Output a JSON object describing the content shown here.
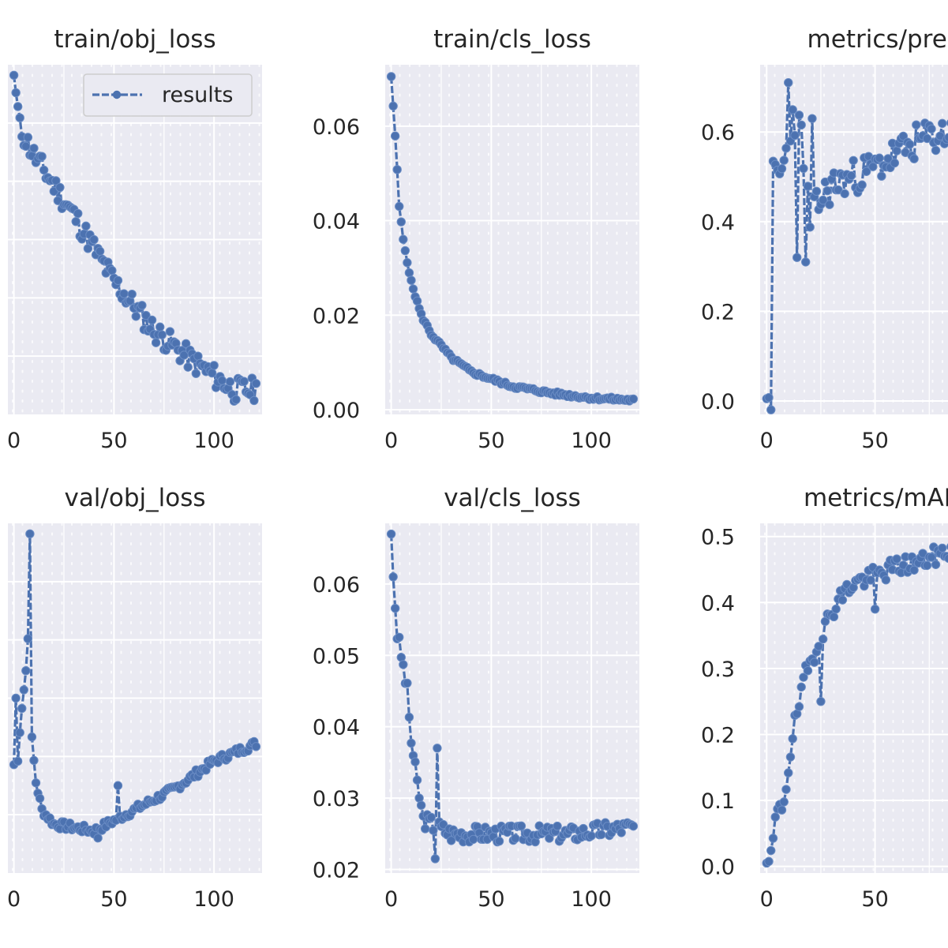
{
  "figure": {
    "background": "#ffffff",
    "plot_background": "#eaeaf2",
    "grid_color": "#ffffff",
    "line_color": "#4c72b0",
    "text_color": "#262626"
  },
  "chart_data": [
    {
      "type": "line",
      "title": "train/obj_loss",
      "legend": {
        "label": "results",
        "placement": "top-right"
      },
      "xlim": [
        -3,
        124
      ],
      "ylim": [
        0.0,
        1.0
      ],
      "xticks": [
        0,
        50,
        100
      ],
      "yticks": [],
      "noise": 0.035,
      "seed": 11,
      "anchors": [
        [
          0,
          0.97
        ],
        [
          3,
          0.82
        ],
        [
          10,
          0.74
        ],
        [
          30,
          0.57
        ],
        [
          50,
          0.38
        ],
        [
          70,
          0.24
        ],
        [
          90,
          0.15
        ],
        [
          110,
          0.07
        ],
        [
          121,
          0.07
        ]
      ]
    },
    {
      "type": "line",
      "title": "train/cls_loss",
      "xlim": [
        -3,
        124
      ],
      "ylim": [
        -0.001,
        0.073
      ],
      "xticks": [
        0,
        50,
        100
      ],
      "yticks": [
        0.0,
        0.02,
        0.04,
        0.06
      ],
      "ytick_labels": [
        "0.00",
        "0.02",
        "0.04",
        "0.06"
      ],
      "noise": 0.0004,
      "seed": 5,
      "anchors": [
        [
          0,
          0.0705
        ],
        [
          2,
          0.058
        ],
        [
          4,
          0.043
        ],
        [
          6,
          0.036
        ],
        [
          10,
          0.027
        ],
        [
          15,
          0.02
        ],
        [
          20,
          0.016
        ],
        [
          30,
          0.011
        ],
        [
          40,
          0.008
        ],
        [
          50,
          0.0065
        ],
        [
          60,
          0.005
        ],
        [
          80,
          0.0035
        ],
        [
          100,
          0.0025
        ],
        [
          121,
          0.002
        ]
      ]
    },
    {
      "type": "line",
      "title": "metrics/preci",
      "xlim": [
        -3,
        88
      ],
      "ylim": [
        -0.03,
        0.75
      ],
      "xticks": [
        0,
        50
      ],
      "yticks": [
        0.0,
        0.2,
        0.4,
        0.6
      ],
      "ytick_labels": [
        "0.0",
        "0.2",
        "0.4",
        "0.6"
      ],
      "noise": 0.04,
      "seed": 23,
      "anchors": [
        [
          0,
          0.005
        ],
        [
          2,
          0.01
        ],
        [
          3,
          0.5
        ],
        [
          6,
          0.5
        ],
        [
          9,
          0.55
        ],
        [
          12,
          0.64
        ],
        [
          16,
          0.6
        ],
        [
          20,
          0.4
        ],
        [
          25,
          0.45
        ],
        [
          30,
          0.48
        ],
        [
          40,
          0.5
        ],
        [
          50,
          0.52
        ],
        [
          60,
          0.55
        ],
        [
          70,
          0.58
        ],
        [
          85,
          0.6
        ]
      ],
      "points": [
        [
          10,
          0.71
        ],
        [
          14,
          0.32
        ],
        [
          18,
          0.31
        ],
        [
          21,
          0.63
        ]
      ]
    },
    {
      "type": "line",
      "title": "val/obj_loss",
      "xlim": [
        -3,
        124
      ],
      "ylim": [
        0.0,
        1.0
      ],
      "xticks": [
        0,
        50,
        100
      ],
      "yticks": [],
      "noise": 0.012,
      "seed": 7,
      "anchors": [
        [
          0,
          0.31
        ],
        [
          1,
          0.5
        ],
        [
          2,
          0.32
        ],
        [
          4,
          0.48
        ],
        [
          6,
          0.58
        ],
        [
          7,
          0.67
        ],
        [
          8,
          0.98
        ],
        [
          9,
          0.38
        ],
        [
          11,
          0.26
        ],
        [
          14,
          0.18
        ],
        [
          20,
          0.14
        ],
        [
          40,
          0.12
        ],
        [
          50,
          0.15
        ],
        [
          60,
          0.18
        ],
        [
          80,
          0.24
        ],
        [
          100,
          0.32
        ],
        [
          121,
          0.37
        ]
      ],
      "points": [
        [
          42,
          0.1
        ],
        [
          52,
          0.25
        ]
      ]
    },
    {
      "type": "line",
      "title": "val/cls_loss",
      "xlim": [
        -3,
        124
      ],
      "ylim": [
        0.0195,
        0.0685
      ],
      "xticks": [
        0,
        50,
        100
      ],
      "yticks": [
        0.02,
        0.03,
        0.04,
        0.05,
        0.06
      ],
      "ytick_labels": [
        "0.02",
        "0.03",
        "0.04",
        "0.05",
        "0.06"
      ],
      "noise": 0.0012,
      "seed": 3,
      "anchors": [
        [
          0,
          0.067
        ],
        [
          1,
          0.061
        ],
        [
          3,
          0.053
        ],
        [
          5,
          0.05
        ],
        [
          8,
          0.045
        ],
        [
          10,
          0.038
        ],
        [
          13,
          0.032
        ],
        [
          16,
          0.027
        ],
        [
          30,
          0.025
        ],
        [
          60,
          0.025
        ],
        [
          90,
          0.025
        ],
        [
          121,
          0.026
        ]
      ],
      "points": [
        [
          22,
          0.0215
        ],
        [
          23,
          0.037
        ]
      ]
    },
    {
      "type": "line",
      "title": "metrics/mAP_",
      "xlim": [
        -3,
        88
      ],
      "ylim": [
        -0.01,
        0.52
      ],
      "xticks": [
        0,
        50
      ],
      "yticks": [
        0.0,
        0.1,
        0.2,
        0.3,
        0.4,
        0.5
      ],
      "ytick_labels": [
        "0.0",
        "0.1",
        "0.2",
        "0.3",
        "0.4",
        "0.5"
      ],
      "noise": 0.015,
      "seed": 19,
      "anchors": [
        [
          0,
          0.005
        ],
        [
          2,
          0.01
        ],
        [
          4,
          0.07
        ],
        [
          8,
          0.1
        ],
        [
          12,
          0.2
        ],
        [
          18,
          0.29
        ],
        [
          25,
          0.35
        ],
        [
          32,
          0.4
        ],
        [
          40,
          0.43
        ],
        [
          50,
          0.44
        ],
        [
          60,
          0.455
        ],
        [
          70,
          0.46
        ],
        [
          85,
          0.48
        ]
      ],
      "points": [
        [
          25,
          0.25
        ],
        [
          50,
          0.39
        ]
      ]
    }
  ]
}
